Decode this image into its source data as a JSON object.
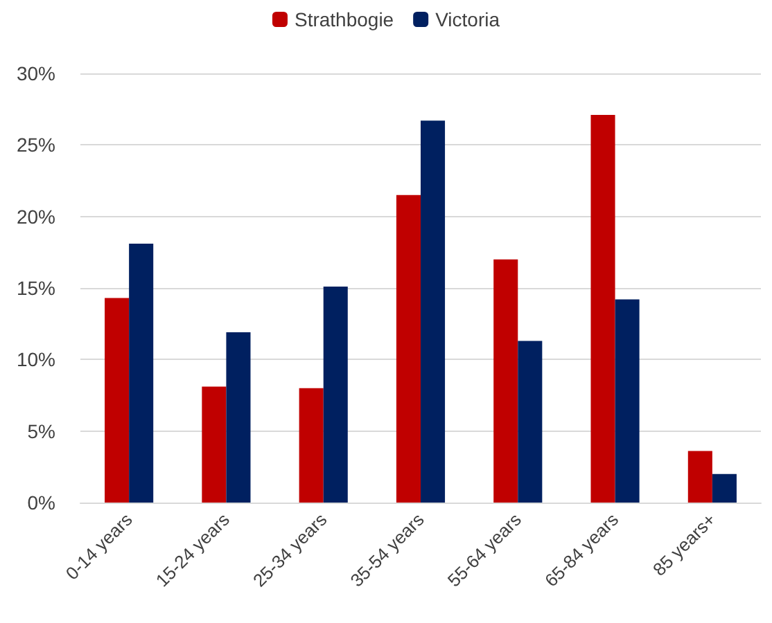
{
  "chart_data": {
    "type": "bar",
    "categories": [
      "0-14 years",
      "15-24 years",
      "25-34 years",
      "35-54 years",
      "55-64 years",
      "65-84 years",
      "85 years+"
    ],
    "series": [
      {
        "name": "Strathbogie",
        "color": "#c00000",
        "values": [
          14.3,
          8.1,
          8.0,
          21.5,
          17.0,
          27.1,
          3.6
        ]
      },
      {
        "name": "Victoria",
        "color": "#002060",
        "values": [
          18.1,
          11.9,
          15.1,
          26.7,
          11.3,
          14.2,
          2.0
        ]
      }
    ],
    "ylim": [
      0,
      30
    ],
    "yticks": [
      {
        "value": 0,
        "label": "0%"
      },
      {
        "value": 5,
        "label": "5%"
      },
      {
        "value": 10,
        "label": "10%"
      },
      {
        "value": 15,
        "label": "15%"
      },
      {
        "value": 20,
        "label": "20%"
      },
      {
        "value": 25,
        "label": "25%"
      },
      {
        "value": 30,
        "label": "30%"
      }
    ],
    "grid": "y",
    "legend": "top"
  }
}
